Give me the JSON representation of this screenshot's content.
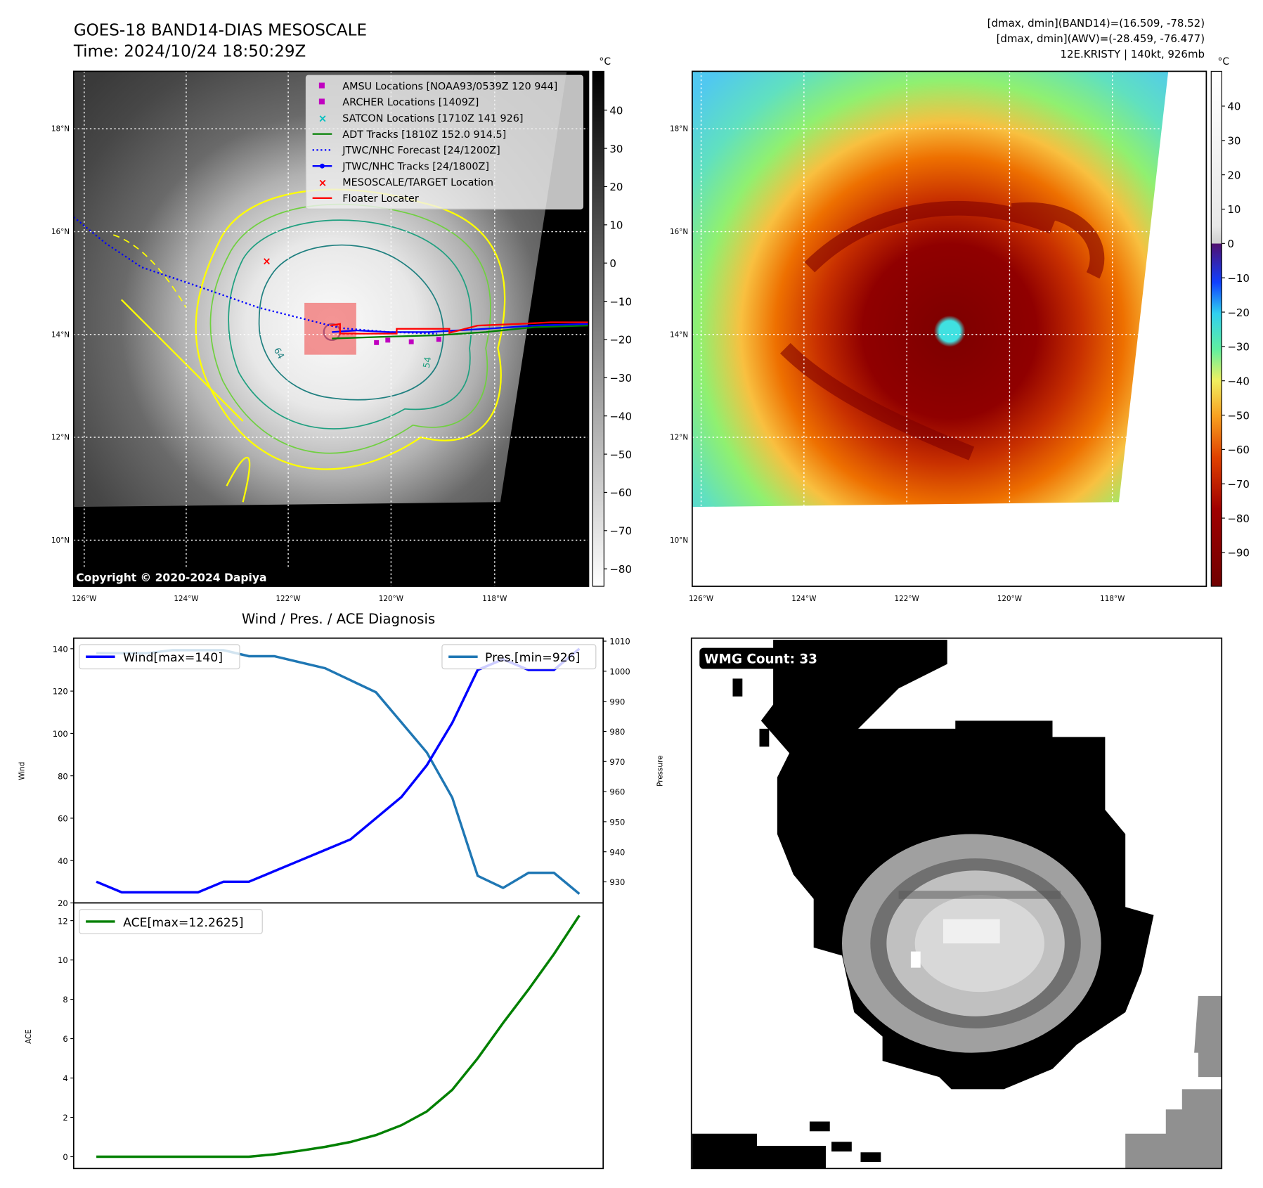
{
  "header": {
    "title": "GOES-18 BAND14-DIAS MESOSCALE",
    "time": "Time: 2024/10/24 18:50:29Z",
    "stats_line1": "[dmax, dmin](BAND14)=(16.509, -78.52)",
    "stats_line2": "[dmax, dmin](AWV)=(-28.459, -76.477)",
    "stats_line3": "12E.KRISTY | 140kt, 926mb"
  },
  "ir_map": {
    "colorbar_unit": "°C",
    "colorbar_ticks": [
      "40",
      "30",
      "20",
      "10",
      "0",
      "−10",
      "−20",
      "−30",
      "−40",
      "−50",
      "−60",
      "−70",
      "−80"
    ],
    "lat_labels": [
      "18°N",
      "16°N",
      "14°N",
      "12°N",
      "10°N"
    ],
    "lon_labels": [
      "126°W",
      "124°W",
      "122°W",
      "120°W",
      "118°W"
    ],
    "contour_labels": [
      "64",
      "54"
    ],
    "copyright": "Copyright © 2020-2024 Dapiya",
    "legend": [
      {
        "label": "AMSU Locations [NOAA93/0539Z 120 944]",
        "color": "#c000c0",
        "marker": "square"
      },
      {
        "label": "ARCHER Locations [1409Z]",
        "color": "#c000c0",
        "marker": "square"
      },
      {
        "label": "SATCON Locations [1710Z 141 926]",
        "color": "#00c0c0",
        "marker": "x"
      },
      {
        "label": "ADT Tracks [1810Z 152.0 914.5]",
        "color": "#008000",
        "marker": "line"
      },
      {
        "label": "JTWC/NHC Forecast [24/1200Z]",
        "color": "#0000ff",
        "marker": "dotted"
      },
      {
        "label": "JTWC/NHC Tracks [24/1800Z]",
        "color": "#0000ff",
        "marker": "line-dot"
      },
      {
        "label": "MESOSCALE/TARGET Location",
        "color": "#ff0000",
        "marker": "x"
      },
      {
        "label": "Floater Locater",
        "color": "#ff0000",
        "marker": "line"
      }
    ]
  },
  "color_map": {
    "colorbar_unit": "°C",
    "colorbar_ticks": [
      "40",
      "30",
      "20",
      "10",
      "0",
      "−10",
      "−20",
      "−30",
      "−40",
      "−50",
      "−60",
      "−70",
      "−80",
      "−90"
    ],
    "lat_labels": [
      "18°N",
      "16°N",
      "14°N",
      "12°N",
      "10°N"
    ],
    "lon_labels": [
      "126°W",
      "124°W",
      "122°W",
      "120°W",
      "118°W"
    ]
  },
  "wmg": {
    "label": "WMG Count: 33"
  },
  "chart_data": [
    {
      "type": "line",
      "title": "Wind / Pres. / ACE Diagnosis",
      "ylabel": "Wind",
      "ylabel_right": "Pressure",
      "ylim": [
        20,
        145
      ],
      "ylim_right": [
        923,
        1011
      ],
      "yticks": [
        20,
        40,
        60,
        80,
        100,
        120,
        140
      ],
      "yticks_right": [
        930,
        940,
        950,
        960,
        970,
        980,
        990,
        1000,
        1010
      ],
      "series": [
        {
          "name": "Wind[max=140]",
          "axis": "left",
          "color": "#0000ff",
          "legend": "top-left",
          "values": [
            30,
            25,
            25,
            25,
            25,
            30,
            30,
            35,
            40,
            45,
            50,
            60,
            70,
            85,
            105,
            130,
            135,
            130,
            130,
            140
          ]
        },
        {
          "name": "Pres.[min=926]",
          "axis": "right",
          "color": "#1f77b4",
          "legend": "top-right",
          "values": [
            1006,
            1006,
            1006,
            1007,
            1007,
            1007,
            1005,
            1005,
            1003,
            1001,
            997,
            993,
            983,
            973,
            958,
            932,
            928,
            933,
            933,
            926
          ]
        }
      ]
    },
    {
      "type": "line",
      "ylabel": "ACE",
      "ylim": [
        -0.6,
        12.9
      ],
      "yticks": [
        0,
        2,
        4,
        6,
        8,
        10,
        12
      ],
      "series": [
        {
          "name": "ACE[max=12.2625]",
          "color": "#008000",
          "legend": "top-left",
          "values": [
            0,
            0,
            0,
            0,
            0,
            0,
            0,
            0.12,
            0.3,
            0.5,
            0.75,
            1.1,
            1.6,
            2.3,
            3.4,
            5.0,
            6.8,
            8.5,
            10.3,
            12.2625
          ]
        }
      ]
    }
  ]
}
